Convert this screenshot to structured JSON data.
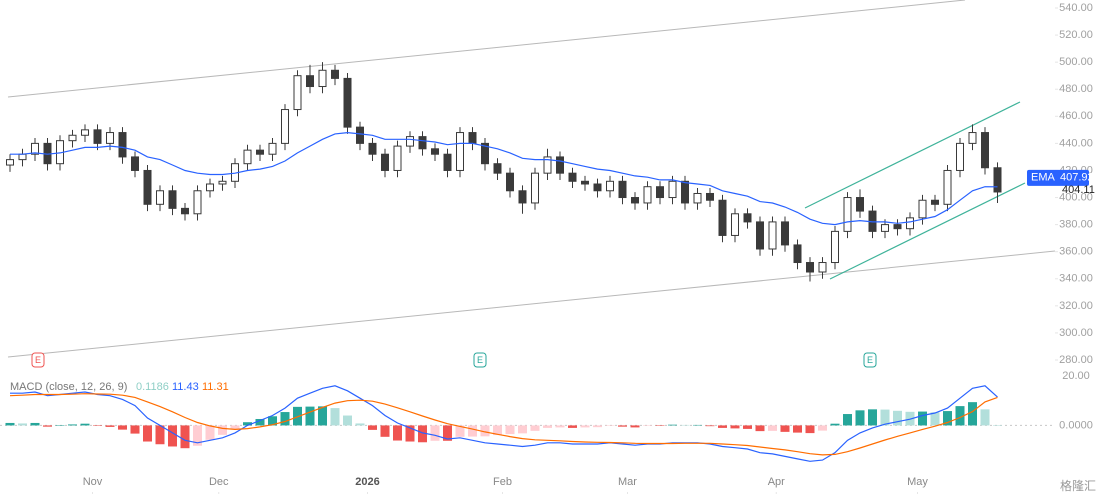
{
  "chart_data": {
    "type": "candlestick",
    "xlim": [
      -0.8,
      83.6
    ],
    "xticks": [
      {
        "value": 6.6,
        "label": "Nov"
      },
      {
        "value": 16.7,
        "label": "Dec"
      },
      {
        "value": 28.6,
        "label": "2026"
      },
      {
        "value": 39.4,
        "label": "Feb"
      },
      {
        "value": 49.4,
        "label": "Mar"
      },
      {
        "value": 61.3,
        "label": "Apr"
      },
      {
        "value": 72.6,
        "label": "May"
      }
    ],
    "ylim": [
      280,
      540
    ],
    "yticks": [
      {
        "value": 540,
        "label": "540.00"
      },
      {
        "value": 520,
        "label": "520.00"
      },
      {
        "value": 500,
        "label": "500.00"
      },
      {
        "value": 480,
        "label": "480.00"
      },
      {
        "value": 460,
        "label": "460.00"
      },
      {
        "value": 440,
        "label": "440.00"
      },
      {
        "value": 420,
        "label": "420.00"
      },
      {
        "value": 400,
        "label": "400.00"
      },
      {
        "value": 380,
        "label": "380.00"
      },
      {
        "value": 360,
        "label": "360.00"
      },
      {
        "value": 340,
        "label": "340.00"
      },
      {
        "value": 320,
        "label": "320.00"
      },
      {
        "value": 300,
        "label": "300.00"
      },
      {
        "value": 280,
        "label": "280.00"
      }
    ],
    "up_color": "#ffffff",
    "down_color": "#3a3a3a",
    "open": [
      424,
      428,
      432,
      440,
      425,
      442,
      446,
      450,
      440,
      448,
      430,
      420,
      395,
      405,
      392,
      388,
      405,
      410,
      412,
      425,
      435,
      432,
      440,
      465,
      490,
      482,
      494,
      488,
      452,
      440,
      432,
      420,
      438,
      445,
      436,
      432,
      420,
      448,
      440,
      425,
      418,
      405,
      396,
      418,
      430,
      418,
      412,
      410,
      405,
      412,
      400,
      396,
      408,
      400,
      412,
      396,
      403,
      398,
      372,
      388,
      382,
      362,
      382,
      365,
      352,
      345,
      352,
      375,
      400,
      390,
      375,
      380,
      377,
      385,
      398,
      395,
      420,
      440,
      448,
      422
    ],
    "high": [
      432,
      436,
      444,
      444,
      446,
      450,
      454,
      454,
      452,
      452,
      434,
      424,
      409,
      409,
      396,
      409,
      414,
      416,
      429,
      439,
      439,
      444,
      469,
      494,
      498,
      500,
      498,
      492,
      456,
      444,
      436,
      442,
      449,
      449,
      440,
      436,
      452,
      452,
      444,
      429,
      422,
      409,
      422,
      436,
      434,
      422,
      416,
      414,
      416,
      416,
      404,
      412,
      412,
      416,
      416,
      407,
      407,
      402,
      392,
      392,
      386,
      386,
      386,
      369,
      356,
      356,
      379,
      404,
      406,
      394,
      384,
      384,
      389,
      402,
      402,
      424,
      444,
      454,
      452,
      426
    ],
    "low": [
      419,
      423,
      427,
      420,
      420,
      437,
      441,
      435,
      435,
      425,
      415,
      390,
      390,
      387,
      383,
      383,
      400,
      405,
      407,
      420,
      427,
      427,
      435,
      460,
      477,
      477,
      483,
      447,
      435,
      427,
      415,
      415,
      433,
      431,
      427,
      415,
      415,
      435,
      420,
      413,
      400,
      388,
      391,
      413,
      413,
      407,
      405,
      400,
      400,
      395,
      391,
      391,
      395,
      395,
      391,
      391,
      393,
      367,
      367,
      377,
      357,
      357,
      360,
      347,
      338,
      340,
      347,
      370,
      385,
      370,
      370,
      372,
      372,
      380,
      390,
      390,
      415,
      435,
      417,
      396
    ],
    "close": [
      428,
      432,
      440,
      425,
      442,
      446,
      450,
      440,
      448,
      430,
      420,
      395,
      405,
      392,
      388,
      405,
      410,
      412,
      425,
      435,
      432,
      440,
      465,
      490,
      482,
      494,
      488,
      452,
      440,
      432,
      420,
      438,
      445,
      436,
      432,
      420,
      448,
      440,
      425,
      418,
      405,
      396,
      418,
      430,
      418,
      412,
      410,
      405,
      412,
      400,
      396,
      408,
      400,
      412,
      396,
      403,
      398,
      372,
      388,
      382,
      362,
      382,
      365,
      352,
      345,
      352,
      375,
      400,
      390,
      375,
      380,
      377,
      385,
      398,
      395,
      420,
      440,
      448,
      422,
      404.11
    ],
    "series": [
      {
        "name": "EMA",
        "color": "#2962ff",
        "values": [
          432,
          432,
          433,
          432,
          433,
          435,
          437,
          437,
          438,
          437,
          435,
          430,
          428,
          424,
          420,
          418,
          417,
          417,
          418,
          420,
          421,
          423,
          427,
          433,
          438,
          443,
          447,
          448,
          447,
          446,
          443,
          443,
          443,
          442,
          441,
          439,
          440,
          440,
          438,
          436,
          433,
          429,
          428,
          428,
          427,
          425,
          423,
          421,
          420,
          418,
          416,
          415,
          413,
          413,
          411,
          410,
          409,
          405,
          403,
          401,
          397,
          396,
          393,
          389,
          384,
          381,
          380,
          382,
          383,
          382,
          382,
          381,
          382,
          384,
          386,
          391,
          398,
          405,
          408,
          407.92
        ]
      }
    ],
    "events": [
      {
        "label": "E",
        "color": "#ef5350"
      },
      {
        "label": "E",
        "color": "#26a69a"
      },
      {
        "label": "E",
        "color": "#26a69a"
      }
    ],
    "macd": {
      "title": "MACD (close, 12, 26, 9)",
      "ylim": [
        -18,
        24
      ],
      "yticks": [
        {
          "value": 20,
          "label": "20.00"
        },
        {
          "value": 0,
          "label": "0.0000"
        }
      ],
      "histogram": {
        "color": "#26a69a",
        "values": [
          1,
          0.8,
          1,
          -0.5,
          0,
          0.4,
          0.7,
          -0.2,
          -0.6,
          -1.7,
          -3.3,
          -6.5,
          -7.6,
          -8.5,
          -9.2,
          -8.2,
          -5.8,
          -3.8,
          -1.4,
          1.3,
          2.6,
          3.7,
          5.4,
          7.5,
          7.6,
          7.7,
          7,
          4,
          0.8,
          -1.8,
          -4.6,
          -6.1,
          -6.5,
          -6.8,
          -6.2,
          -6.2,
          -4.6,
          -4.5,
          -4.4,
          -3.9,
          -3.5,
          -3.2,
          -2.2,
          -1,
          -0.8,
          -1,
          -0.8,
          -0.7,
          -0.1,
          -0.5,
          -0.8,
          -0.2,
          -0.2,
          0.3,
          0.2,
          0.2,
          -0.3,
          -1,
          -1.2,
          -1.4,
          -2.3,
          -2.2,
          -2.6,
          -2.9,
          -3.1,
          -2.1,
          0.7,
          4.6,
          6.1,
          6.5,
          6.4,
          5.9,
          5.5,
          5.6,
          5.3,
          5.8,
          7.8,
          9.4,
          6.5,
          0.1186
        ]
      },
      "series": [
        {
          "color": "#2962ff",
          "values": [
            13,
            13,
            13.5,
            12,
            12.5,
            13,
            13.5,
            12.5,
            12,
            10.5,
            8,
            3,
            0,
            -3,
            -6,
            -7,
            -6,
            -5,
            -3,
            0,
            2,
            4,
            7,
            11,
            13,
            15,
            16,
            14,
            11,
            8,
            4,
            1,
            -1,
            -3,
            -4,
            -5.5,
            -5,
            -6,
            -7,
            -7.5,
            -8,
            -8.5,
            -8,
            -7,
            -7,
            -7.5,
            -7.5,
            -7.5,
            -7,
            -7.5,
            -8,
            -7.5,
            -7.5,
            -7,
            -7,
            -7,
            -7.5,
            -8.5,
            -9,
            -9.5,
            -11,
            -11.5,
            -12.5,
            -13.5,
            -14.5,
            -14,
            -11,
            -6,
            -3,
            -1,
            0.5,
            1.5,
            2.5,
            4,
            5,
            7,
            11,
            15,
            16,
            11.43
          ]
        },
        {
          "color": "#ff6d00",
          "values": [
            12,
            12.2,
            12.5,
            12.5,
            12.5,
            12.6,
            12.8,
            12.7,
            12.6,
            12.2,
            11.3,
            9.5,
            7.6,
            5.5,
            3.2,
            1.2,
            -0.2,
            -1.2,
            -1.6,
            -1.3,
            -0.6,
            0.3,
            1.6,
            3.5,
            5.4,
            7.3,
            9,
            10,
            10.2,
            9.8,
            8.6,
            7.1,
            5.5,
            3.8,
            2.2,
            0.7,
            -0.4,
            -1.5,
            -2.6,
            -3.6,
            -4.5,
            -5.3,
            -5.8,
            -6,
            -6.2,
            -6.5,
            -6.7,
            -6.8,
            -6.9,
            -7,
            -7.2,
            -7.3,
            -7.3,
            -7.3,
            -7.2,
            -7.2,
            -7.2,
            -7.5,
            -7.8,
            -8.1,
            -8.7,
            -9.3,
            -9.9,
            -10.6,
            -11.4,
            -11.9,
            -11.7,
            -10.6,
            -9.1,
            -7.5,
            -5.9,
            -4.4,
            -3,
            -1.6,
            -0.3,
            1.2,
            3.2,
            5.6,
            9.5,
            11.31
          ]
        }
      ]
    },
    "watermark": "格隆汇"
  }
}
